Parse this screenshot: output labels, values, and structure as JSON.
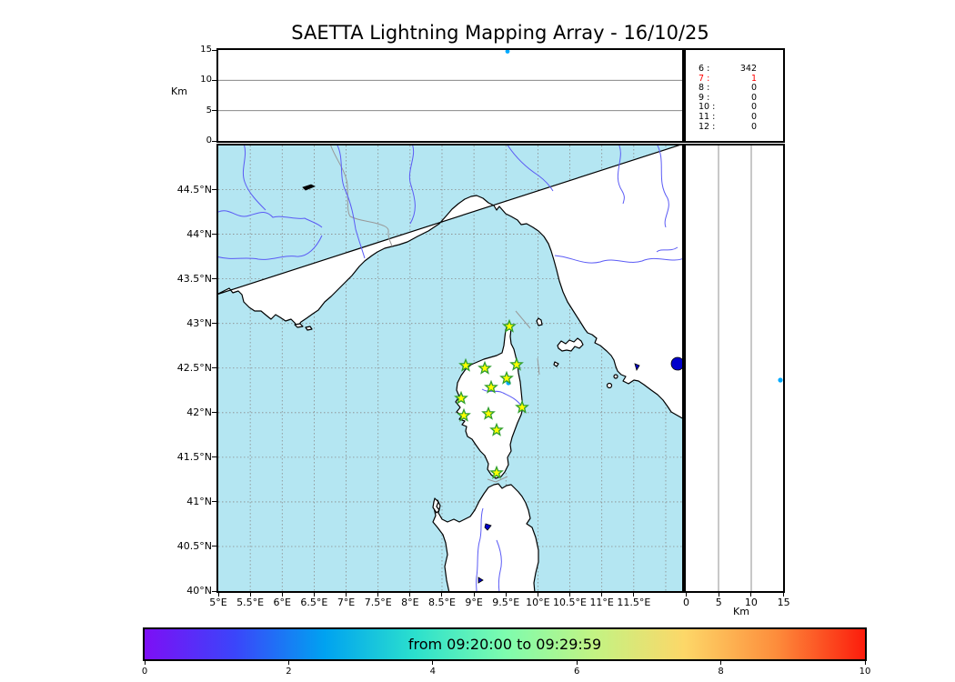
{
  "title": "SAETTA Lightning Mapping Array - 16/10/25",
  "altitude_panel": {
    "axis_label": "Km",
    "yticks": [
      "15",
      "10",
      "5",
      "0"
    ],
    "source_point_x": 318
  },
  "station_legend": [
    {
      "station": "6",
      "count": "342",
      "red": false
    },
    {
      "station": "7",
      "count": "1",
      "red": true
    },
    {
      "station": "8",
      "count": "0",
      "red": false
    },
    {
      "station": "9",
      "count": "0",
      "red": false
    },
    {
      "station": "10",
      "count": "0",
      "red": false
    },
    {
      "station": "11",
      "count": "0",
      "red": false
    },
    {
      "station": "12",
      "count": "0",
      "red": false
    }
  ],
  "map_panel": {
    "lat_ticks": [
      "44.5°N",
      "44°N",
      "43.5°N",
      "43°N",
      "42.5°N",
      "42°N",
      "41.5°N",
      "41°N",
      "40.5°N",
      "40°N"
    ],
    "lon_ticks": [
      "5°E",
      "5.5°E",
      "6°E",
      "6.5°E",
      "7°E",
      "7.5°E",
      "8°E",
      "8.5°E",
      "9°E",
      "9.5°E",
      "10°E",
      "10.5°E",
      "11°E",
      "11.5°E"
    ],
    "stations": [
      [
        320,
        199
      ],
      [
        272,
        242
      ],
      [
        293,
        245
      ],
      [
        328,
        241
      ],
      [
        317,
        256
      ],
      [
        300,
        266
      ],
      [
        267,
        278
      ],
      [
        334,
        288
      ],
      [
        297,
        295
      ],
      [
        270,
        297
      ],
      [
        306,
        313
      ],
      [
        306,
        360
      ]
    ],
    "source_point": [
      319,
      261
    ],
    "colors": {
      "sea": "#b4e6f2",
      "land": "#ffffff",
      "river": "#5b5bf5",
      "lake": "#0000cc",
      "grid": "#8a8a8a",
      "station_fill": "#ffff00",
      "station_edge": "#2e9e2e",
      "source": "#00aaff"
    }
  },
  "lat_alt_panel": {
    "xticks": [
      "0",
      "5",
      "10",
      "15"
    ],
    "axis_label": "Km",
    "source_point": [
      104,
      258
    ]
  },
  "colorbar": {
    "label": "from 09:20:00 to 09:29:59",
    "ticks": [
      "0",
      "2",
      "4",
      "6",
      "8",
      "10"
    ],
    "gradient": [
      "#7d0ff5",
      "#3b45fa",
      "#00a2f0",
      "#2be0cd",
      "#7dfcae",
      "#c3f383",
      "#fdd768",
      "#fd8e3c",
      "#fc1c0c"
    ]
  }
}
